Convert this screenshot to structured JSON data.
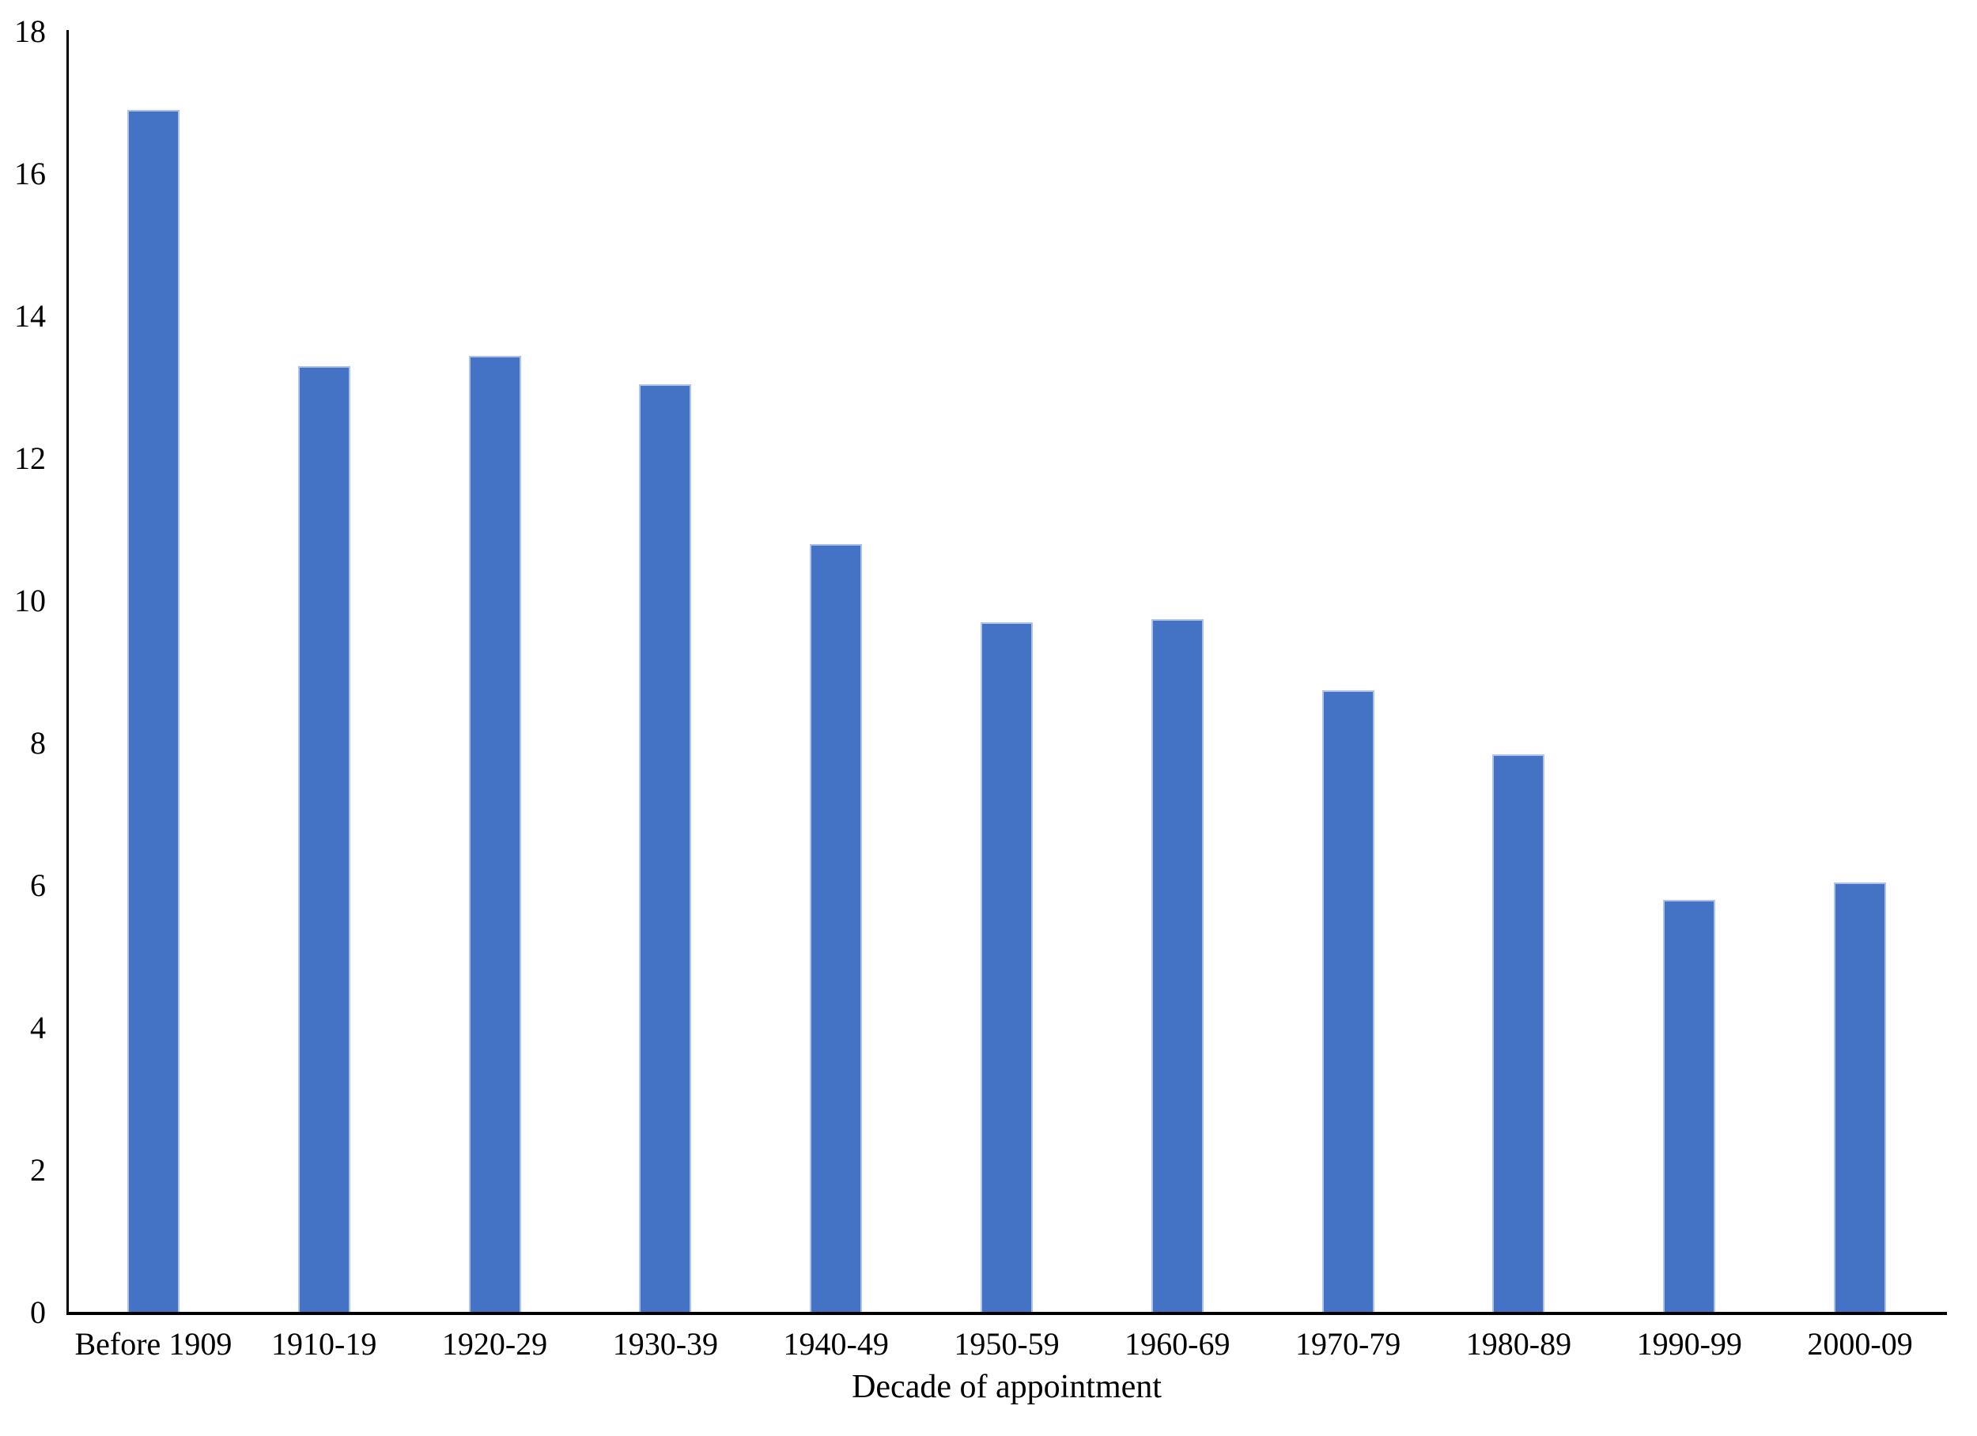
{
  "chart_data": {
    "type": "bar",
    "title": "",
    "xlabel": "Decade of appointment",
    "ylabel": "",
    "categories": [
      "Before 1909",
      "1910-19",
      "1920-29",
      "1930-39",
      "1940-49",
      "1950-59",
      "1960-69",
      "1970-79",
      "1980-89",
      "1990-99",
      "2000-09"
    ],
    "values": [
      16.9,
      13.3,
      13.45,
      13.05,
      10.8,
      9.7,
      9.75,
      8.75,
      7.85,
      5.8,
      6.05
    ],
    "ylim": [
      0,
      18
    ],
    "ytick_step": 2,
    "ytick_labels": [
      "0",
      "2",
      "4",
      "6",
      "8",
      "10",
      "12",
      "14",
      "16",
      "18"
    ],
    "grid": false,
    "legend_position": "none",
    "bar_color": "#4472C4",
    "bar_border_color": "#AEC3E9",
    "axis_color": "#000000",
    "text_color": "#000000",
    "background_color": "#FFFFFF"
  }
}
